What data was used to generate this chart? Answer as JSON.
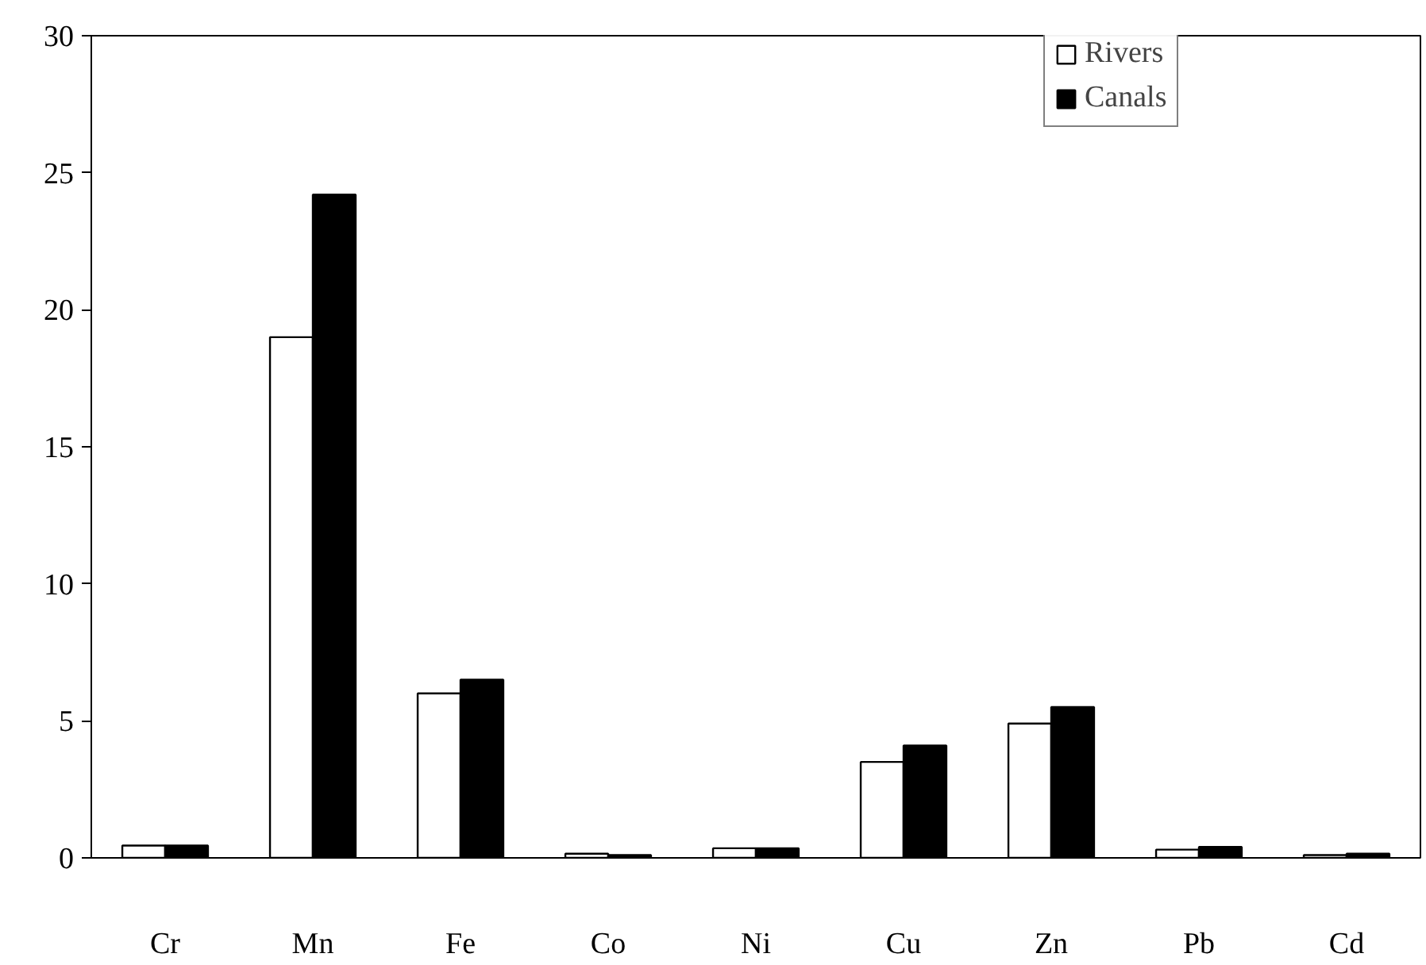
{
  "chart_data": {
    "type": "bar",
    "categories": [
      "Cr",
      "Mn",
      "Fe",
      "Co",
      "Ni",
      "Cu",
      "Zn",
      "Pb",
      "Cd"
    ],
    "series": [
      {
        "name": "Rivers",
        "color": "#ffffff",
        "values": [
          0.45,
          19.0,
          6.0,
          0.15,
          0.35,
          3.5,
          4.9,
          0.3,
          0.1
        ]
      },
      {
        "name": "Canals",
        "color": "#000000",
        "values": [
          0.45,
          24.2,
          6.5,
          0.1,
          0.35,
          4.1,
          5.5,
          0.4,
          0.15
        ]
      }
    ],
    "ylim": [
      0,
      30
    ],
    "yticks": [
      0,
      5,
      10,
      15,
      20,
      25,
      30
    ],
    "grid": false,
    "legend": "top right"
  }
}
